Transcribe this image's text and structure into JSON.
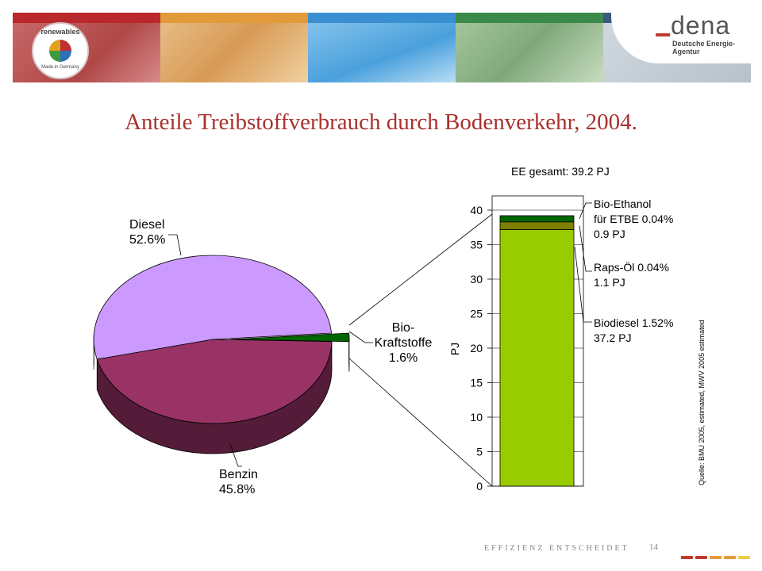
{
  "header": {
    "banner_colors": [
      "#b8282c",
      "#e39a3a",
      "#3a8fd0",
      "#3c8a4a",
      "#3b5a80"
    ],
    "renewables_logo_top": "renewables",
    "renewables_logo_bottom": "Made in Germany",
    "dena_logo": "dena",
    "dena_subtitle": "Deutsche Energie-Agentur"
  },
  "title": "Anteile Treibstoffverbrauch durch Bodenverkehr, 2004.",
  "chart_data": [
    {
      "type": "pie",
      "slices": [
        {
          "label": "Diesel",
          "value": 52.6,
          "value_label": "52.6%",
          "color": "#cc99ff"
        },
        {
          "label": "Benzin",
          "value": 45.8,
          "value_label": "45.8%",
          "color": "#993366"
        },
        {
          "label": "Bio-\nKraftstoffe",
          "value": 1.6,
          "value_label": "1.6%",
          "color": "#006600"
        }
      ]
    },
    {
      "type": "bar",
      "stacked": true,
      "title": "EE gesamt: 39.2 PJ",
      "ylabel": "PJ",
      "ylim": [
        0,
        40
      ],
      "yticks": [
        0,
        5,
        10,
        15,
        20,
        25,
        30,
        35,
        40
      ],
      "series": [
        {
          "name": "Biodiesel",
          "share": "1.52%",
          "value": 37.2,
          "label_lines": [
            "Biodiesel 1.52%",
            "37.2 PJ"
          ],
          "color": "#99cc00"
        },
        {
          "name": "Raps-Öl",
          "share": "0.04%",
          "value": 1.1,
          "label_lines": [
            "Raps-Öl 0.04%",
            "1.1 PJ"
          ],
          "color": "#808000"
        },
        {
          "name": "Bio-Ethanol für ETBE",
          "share": "0.04%",
          "value": 0.9,
          "label_lines": [
            "Bio-Ethanol",
            "für ETBE 0.04%",
            "0.9 PJ"
          ],
          "color": "#006600"
        }
      ],
      "source_note": "Quelle: BMU 2005, estimated, MWV 2005 estimated"
    }
  ],
  "footer": {
    "tagline": "EFFIZIENZ ENTSCHEIDET",
    "page_number": "14",
    "dash_colors": [
      "#c0392b",
      "#c0392b",
      "#e39a3a",
      "#e39a3a",
      "#f2c94c"
    ]
  }
}
